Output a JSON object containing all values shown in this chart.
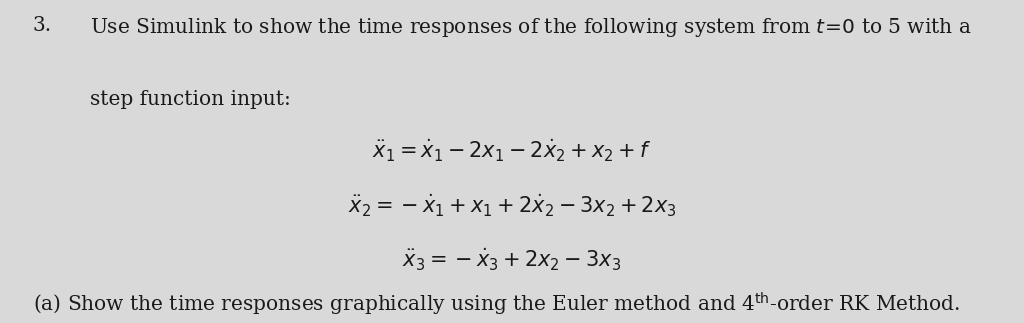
{
  "background_color": "#d9d9d9",
  "text_color": "#1a1a1a",
  "fontsize_main": 14.5,
  "fontsize_eq": 15,
  "fontsize_parts": 14.5
}
